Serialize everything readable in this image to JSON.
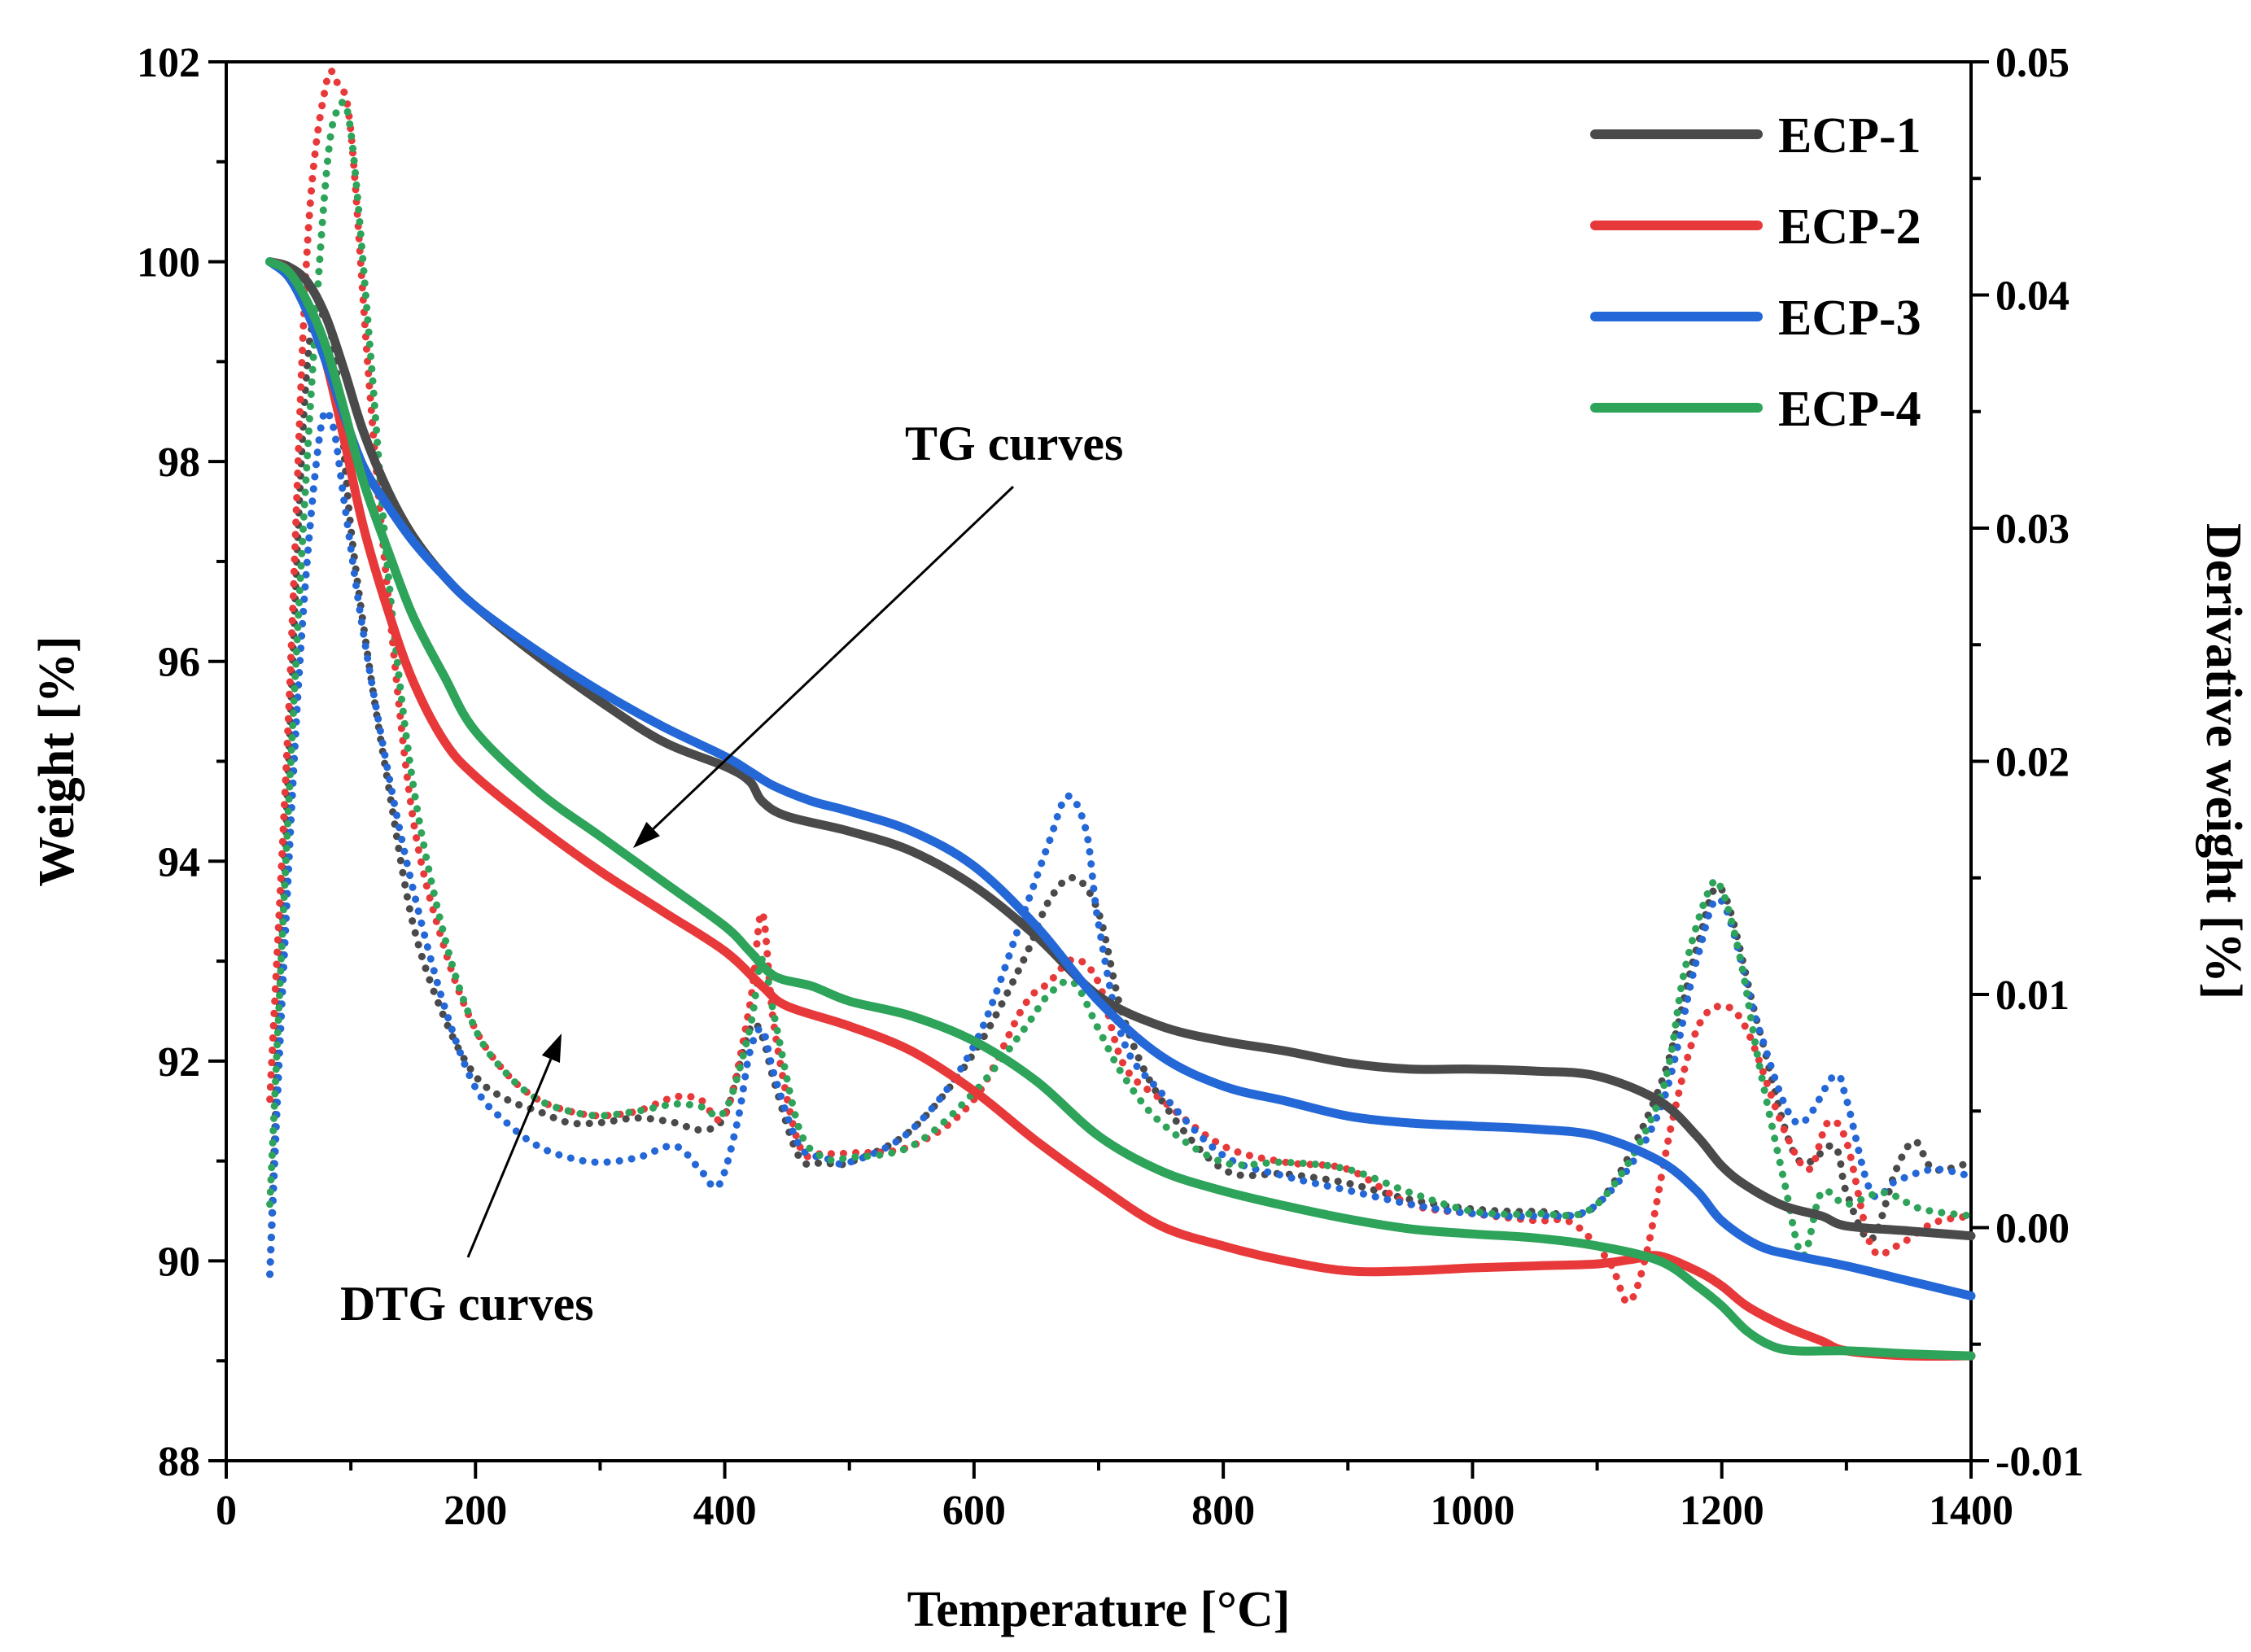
{
  "chart_data": {
    "type": "line",
    "xlabel": "Temperature [°C]",
    "ylabel": "Weight [%]",
    "y2label": "Derivative weight [%]",
    "xlim": [
      0,
      1400
    ],
    "ylim": [
      88,
      102
    ],
    "y2lim": [
      -0.01,
      0.05
    ],
    "xticks": [
      "0",
      "200",
      "400",
      "600",
      "800",
      "1000",
      "1200",
      "1400"
    ],
    "yticks": [
      "88",
      "90",
      "92",
      "94",
      "96",
      "98",
      "100",
      "102"
    ],
    "y2ticks": [
      "-0.01",
      "0.00",
      "0.01",
      "0.02",
      "0.03",
      "0.04",
      "0.05"
    ],
    "legend": [
      "ECP-1",
      "ECP-2",
      "ECP-3",
      "ECP-4"
    ],
    "annotations": {
      "tg": "TG curves",
      "dtg": "DTG curves"
    },
    "colors": {
      "ECP-1": "#4a4a4a",
      "ECP-2": "#e8393a",
      "ECP-3": "#2467d6",
      "ECP-4": "#2ea35a"
    },
    "series_tg": [
      {
        "name": "ECP-1",
        "x": [
          35,
          50,
          65,
          80,
          95,
          110,
          130,
          150,
          175,
          200,
          250,
          300,
          350,
          400,
          420,
          430,
          450,
          500,
          550,
          600,
          650,
          700,
          750,
          800,
          850,
          900,
          950,
          1000,
          1050,
          1100,
          1150,
          1180,
          1200,
          1220,
          1250,
          1280,
          1300,
          1350,
          1400
        ],
        "y": [
          100,
          99.95,
          99.8,
          99.45,
          98.9,
          98.3,
          97.7,
          97.25,
          96.85,
          96.55,
          96.05,
          95.6,
          95.2,
          94.95,
          94.8,
          94.6,
          94.45,
          94.3,
          94.1,
          93.75,
          93.25,
          92.65,
          92.35,
          92.2,
          92.1,
          91.98,
          91.92,
          91.92,
          91.9,
          91.85,
          91.6,
          91.25,
          90.95,
          90.75,
          90.55,
          90.45,
          90.35,
          90.3,
          90.25
        ]
      },
      {
        "name": "ECP-2",
        "x": [
          35,
          50,
          65,
          80,
          95,
          110,
          130,
          150,
          175,
          200,
          250,
          300,
          350,
          400,
          430,
          450,
          500,
          550,
          600,
          650,
          700,
          750,
          800,
          850,
          900,
          950,
          1000,
          1050,
          1100,
          1130,
          1150,
          1180,
          1200,
          1220,
          1250,
          1280,
          1300,
          1350,
          1400
        ],
        "y": [
          100,
          99.9,
          99.55,
          99,
          98.2,
          97.35,
          96.5,
          95.8,
          95.2,
          94.85,
          94.35,
          93.9,
          93.5,
          93.1,
          92.75,
          92.55,
          92.35,
          92.1,
          91.7,
          91.2,
          90.75,
          90.35,
          90.15,
          90,
          89.9,
          89.9,
          89.93,
          89.95,
          89.97,
          90.02,
          90.05,
          89.9,
          89.75,
          89.55,
          89.35,
          89.2,
          89.1,
          89.05,
          89.05
        ]
      },
      {
        "name": "ECP-3",
        "x": [
          35,
          50,
          65,
          80,
          95,
          110,
          130,
          150,
          175,
          200,
          250,
          300,
          350,
          400,
          420,
          440,
          470,
          500,
          550,
          600,
          650,
          700,
          750,
          800,
          850,
          900,
          950,
          1000,
          1050,
          1100,
          1150,
          1180,
          1200,
          1230,
          1260,
          1300,
          1350,
          1400
        ],
        "y": [
          100,
          99.85,
          99.5,
          99,
          98.45,
          97.95,
          97.55,
          97.2,
          96.85,
          96.55,
          96.1,
          95.7,
          95.35,
          95.05,
          94.9,
          94.75,
          94.6,
          94.5,
          94.3,
          93.95,
          93.35,
          92.6,
          92.05,
          91.75,
          91.6,
          91.45,
          91.38,
          91.35,
          91.32,
          91.25,
          91,
          90.7,
          90.4,
          90.15,
          90.05,
          89.95,
          89.8,
          89.65
        ]
      },
      {
        "name": "ECP-4",
        "x": [
          35,
          50,
          65,
          80,
          95,
          110,
          130,
          150,
          175,
          200,
          250,
          300,
          350,
          400,
          420,
          440,
          470,
          500,
          550,
          600,
          650,
          700,
          750,
          800,
          850,
          900,
          950,
          1000,
          1050,
          1100,
          1150,
          1180,
          1200,
          1220,
          1240,
          1260,
          1300,
          1350,
          1400
        ],
        "y": [
          100,
          99.9,
          99.6,
          99.15,
          98.5,
          97.8,
          97.1,
          96.45,
          95.85,
          95.3,
          94.7,
          94.25,
          93.8,
          93.35,
          93.1,
          92.85,
          92.75,
          92.6,
          92.45,
          92.2,
          91.8,
          91.25,
          90.9,
          90.7,
          90.55,
          90.42,
          90.32,
          90.27,
          90.23,
          90.15,
          90,
          89.75,
          89.55,
          89.3,
          89.15,
          89.1,
          89.1,
          89.07,
          89.05
        ]
      }
    ],
    "series_dtg": [
      {
        "name": "ECP-1",
        "x": [
          35,
          50,
          65,
          80,
          90,
          100,
          115,
          130,
          150,
          175,
          200,
          225,
          250,
          275,
          300,
          330,
          360,
          380,
          400,
          420,
          430,
          440,
          460,
          480,
          500,
          550,
          600,
          640,
          660,
          680,
          700,
          720,
          750,
          800,
          850,
          900,
          950,
          1000,
          1050,
          1100,
          1150,
          1180,
          1200,
          1230,
          1260,
          1290,
          1300,
          1320,
          1340,
          1355,
          1370,
          1400
        ],
        "y": [
          -0.002,
          0.02,
          0.037,
          0.039,
          0.036,
          0.03,
          0.024,
          0.019,
          0.013,
          0.009,
          0.0065,
          0.0055,
          0.005,
          0.0045,
          0.0045,
          0.0047,
          0.0045,
          0.0042,
          0.0048,
          0.0085,
          0.0082,
          0.0062,
          0.003,
          0.0028,
          0.0028,
          0.0042,
          0.0075,
          0.0115,
          0.014,
          0.015,
          0.0135,
          0.009,
          0.0055,
          0.0025,
          0.0023,
          0.0019,
          0.0012,
          0.0008,
          0.0007,
          0.001,
          0.006,
          0.012,
          0.0145,
          0.0085,
          0.003,
          0.0035,
          0.0015,
          -0.0005,
          0.0025,
          0.0037,
          0.0025,
          0.0028
        ]
      },
      {
        "name": "ECP-2",
        "x": [
          35,
          50,
          65,
          80,
          90,
          100,
          115,
          130,
          150,
          175,
          200,
          225,
          250,
          275,
          300,
          330,
          360,
          380,
          400,
          420,
          430,
          440,
          460,
          480,
          500,
          550,
          600,
          640,
          660,
          680,
          700,
          720,
          750,
          800,
          850,
          900,
          950,
          1000,
          1050,
          1080,
          1110,
          1125,
          1140,
          1160,
          1180,
          1200,
          1220,
          1250,
          1270,
          1285,
          1300,
          1320,
          1340,
          1370,
          1400
        ],
        "y": [
          0.0055,
          0.022,
          0.042,
          0.049,
          0.049,
          0.047,
          0.036,
          0.027,
          0.0175,
          0.012,
          0.0085,
          0.0066,
          0.0055,
          0.005,
          0.0048,
          0.005,
          0.0056,
          0.0055,
          0.0048,
          0.0095,
          0.0135,
          0.0085,
          0.0035,
          0.0032,
          0.0032,
          0.0035,
          0.0055,
          0.0095,
          0.0105,
          0.0115,
          0.0105,
          0.007,
          0.0055,
          0.0035,
          0.0028,
          0.0025,
          0.001,
          0.0006,
          0.0003,
          0.0002,
          -0.0015,
          -0.0032,
          -0.001,
          0.0045,
          0.0085,
          0.0095,
          0.0085,
          0.0042,
          0.0025,
          0.0045,
          0.0037,
          -0.0008,
          -0.0008,
          0.0002,
          0.0005
        ]
      },
      {
        "name": "ECP-3",
        "x": [
          35,
          45,
          60,
          75,
          85,
          95,
          110,
          130,
          150,
          175,
          200,
          225,
          250,
          275,
          300,
          330,
          360,
          380,
          395,
          410,
          420,
          430,
          440,
          460,
          480,
          500,
          550,
          600,
          640,
          660,
          675,
          690,
          700,
          720,
          750,
          800,
          850,
          900,
          950,
          1000,
          1050,
          1100,
          1150,
          1180,
          1200,
          1230,
          1260,
          1290,
          1300,
          1320,
          1340,
          1370,
          1400
        ],
        "y": [
          -0.002,
          0.01,
          0.025,
          0.034,
          0.0345,
          0.031,
          0.0255,
          0.0195,
          0.0145,
          0.0095,
          0.006,
          0.0045,
          0.0035,
          0.003,
          0.0028,
          0.003,
          0.0035,
          0.0025,
          0.0018,
          0.0045,
          0.0075,
          0.0085,
          0.0065,
          0.0035,
          0.003,
          0.0028,
          0.0042,
          0.0078,
          0.0135,
          0.0165,
          0.0185,
          0.017,
          0.013,
          0.008,
          0.0058,
          0.0031,
          0.0022,
          0.0016,
          0.001,
          0.0006,
          0.0005,
          0.001,
          0.005,
          0.0115,
          0.014,
          0.0085,
          0.0045,
          0.0065,
          0.0055,
          0.0015,
          0.002,
          0.0025,
          0.0022
        ]
      },
      {
        "name": "ECP-4",
        "x": [
          35,
          50,
          65,
          80,
          90,
          100,
          115,
          130,
          150,
          175,
          200,
          225,
          250,
          275,
          300,
          330,
          360,
          380,
          400,
          420,
          430,
          440,
          460,
          480,
          500,
          550,
          600,
          640,
          660,
          680,
          700,
          720,
          750,
          800,
          850,
          900,
          950,
          1000,
          1050,
          1100,
          1150,
          1170,
          1190,
          1200,
          1215,
          1230,
          1250,
          1265,
          1280,
          1300,
          1330,
          1360,
          1400
        ],
        "y": [
          0.001,
          0.018,
          0.033,
          0.045,
          0.048,
          0.047,
          0.038,
          0.028,
          0.019,
          0.0125,
          0.0085,
          0.0066,
          0.0055,
          0.005,
          0.0048,
          0.005,
          0.0053,
          0.0052,
          0.005,
          0.0085,
          0.0115,
          0.009,
          0.0042,
          0.003,
          0.003,
          0.0035,
          0.0058,
          0.0085,
          0.01,
          0.0105,
          0.0085,
          0.0065,
          0.0045,
          0.0028,
          0.0028,
          0.0025,
          0.0015,
          0.0007,
          0.0006,
          0.001,
          0.0055,
          0.011,
          0.0145,
          0.0145,
          0.0115,
          0.007,
          0.002,
          -0.0012,
          0.0015,
          0.001,
          0.0015,
          0.0008,
          0.0005
        ]
      }
    ]
  }
}
